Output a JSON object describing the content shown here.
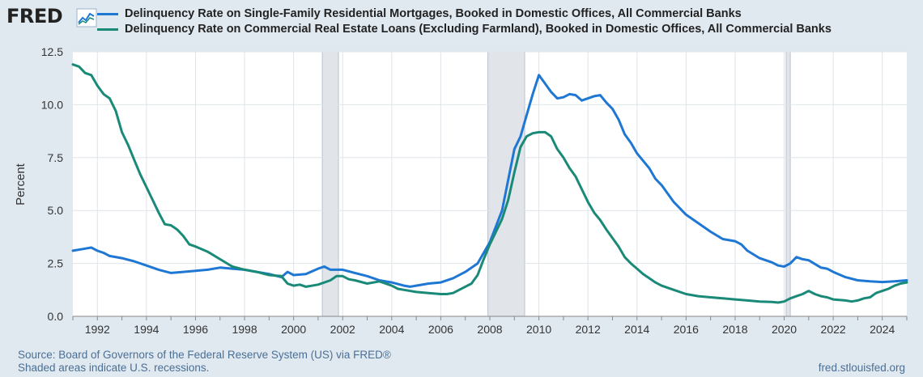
{
  "header": {
    "logo_text": "FRED",
    "logo_icon": "chart-line-icon"
  },
  "footer": {
    "source": "Source: Board of Governors of the Federal Reserve System (US) via FRED®",
    "recession_note": "Shaded areas indicate U.S. recessions.",
    "site": "fred.stlouisfed.org"
  },
  "chart_data": {
    "type": "line",
    "title": "",
    "xlabel": "",
    "ylabel": "Percent",
    "xlim": [
      1991.0,
      2025.0
    ],
    "ylim": [
      0,
      12.5
    ],
    "x_ticks": [
      1992,
      1994,
      1996,
      1998,
      2000,
      2002,
      2004,
      2006,
      2008,
      2010,
      2012,
      2014,
      2016,
      2018,
      2020,
      2022,
      2024
    ],
    "y_ticks": [
      "0.0",
      "2.5",
      "5.0",
      "7.5",
      "10.0",
      "12.5"
    ],
    "grid": true,
    "legend_position": "top-left",
    "recessions": [
      [
        2001.17,
        2001.83
      ],
      [
        2007.92,
        2009.42
      ],
      [
        2020.08,
        2020.25
      ]
    ],
    "series": [
      {
        "name": "Delinquency Rate on Single-Family Residential Mortgages, Booked in Domestic Offices, All Commercial Banks",
        "color": "#1f77d4",
        "points": [
          [
            1991.0,
            3.1
          ],
          [
            1991.5,
            3.2
          ],
          [
            1991.75,
            3.25
          ],
          [
            1992.0,
            3.1
          ],
          [
            1992.25,
            3.0
          ],
          [
            1992.5,
            2.85
          ],
          [
            1993.0,
            2.75
          ],
          [
            1993.5,
            2.6
          ],
          [
            1994.0,
            2.4
          ],
          [
            1994.5,
            2.2
          ],
          [
            1995.0,
            2.05
          ],
          [
            1995.5,
            2.1
          ],
          [
            1996.0,
            2.15
          ],
          [
            1996.5,
            2.2
          ],
          [
            1997.0,
            2.3
          ],
          [
            1997.5,
            2.25
          ],
          [
            1998.0,
            2.2
          ],
          [
            1998.5,
            2.1
          ],
          [
            1999.0,
            2.0
          ],
          [
            1999.5,
            1.85
          ],
          [
            1999.75,
            2.1
          ],
          [
            2000.0,
            1.95
          ],
          [
            2000.5,
            2.0
          ],
          [
            2001.0,
            2.25
          ],
          [
            2001.25,
            2.35
          ],
          [
            2001.5,
            2.2
          ],
          [
            2002.0,
            2.2
          ],
          [
            2002.5,
            2.05
          ],
          [
            2003.0,
            1.9
          ],
          [
            2003.5,
            1.7
          ],
          [
            2004.0,
            1.6
          ],
          [
            2004.5,
            1.45
          ],
          [
            2004.75,
            1.4
          ],
          [
            2005.0,
            1.45
          ],
          [
            2005.5,
            1.55
          ],
          [
            2006.0,
            1.6
          ],
          [
            2006.5,
            1.8
          ],
          [
            2007.0,
            2.1
          ],
          [
            2007.5,
            2.5
          ],
          [
            2008.0,
            3.5
          ],
          [
            2008.5,
            5.0
          ],
          [
            2009.0,
            7.9
          ],
          [
            2009.25,
            8.5
          ],
          [
            2009.5,
            9.5
          ],
          [
            2009.75,
            10.5
          ],
          [
            2010.0,
            11.4
          ],
          [
            2010.25,
            11.0
          ],
          [
            2010.5,
            10.6
          ],
          [
            2010.75,
            10.3
          ],
          [
            2011.0,
            10.35
          ],
          [
            2011.25,
            10.5
          ],
          [
            2011.5,
            10.45
          ],
          [
            2011.75,
            10.2
          ],
          [
            2012.0,
            10.3
          ],
          [
            2012.25,
            10.4
          ],
          [
            2012.5,
            10.45
          ],
          [
            2012.75,
            10.1
          ],
          [
            2013.0,
            9.8
          ],
          [
            2013.25,
            9.3
          ],
          [
            2013.5,
            8.6
          ],
          [
            2013.75,
            8.2
          ],
          [
            2014.0,
            7.7
          ],
          [
            2014.5,
            7.0
          ],
          [
            2014.75,
            6.5
          ],
          [
            2015.0,
            6.2
          ],
          [
            2015.5,
            5.4
          ],
          [
            2016.0,
            4.8
          ],
          [
            2016.5,
            4.4
          ],
          [
            2017.0,
            4.0
          ],
          [
            2017.5,
            3.65
          ],
          [
            2018.0,
            3.55
          ],
          [
            2018.25,
            3.4
          ],
          [
            2018.5,
            3.1
          ],
          [
            2019.0,
            2.75
          ],
          [
            2019.5,
            2.55
          ],
          [
            2019.75,
            2.4
          ],
          [
            2020.0,
            2.35
          ],
          [
            2020.25,
            2.5
          ],
          [
            2020.5,
            2.8
          ],
          [
            2020.75,
            2.7
          ],
          [
            2021.0,
            2.65
          ],
          [
            2021.5,
            2.3
          ],
          [
            2021.75,
            2.25
          ],
          [
            2022.0,
            2.1
          ],
          [
            2022.5,
            1.85
          ],
          [
            2023.0,
            1.7
          ],
          [
            2023.5,
            1.65
          ],
          [
            2024.0,
            1.62
          ],
          [
            2024.5,
            1.65
          ],
          [
            2025.0,
            1.7
          ]
        ]
      },
      {
        "name": "Delinquency Rate on Commercial Real Estate Loans (Excluding Farmland), Booked in Domestic Offices, All Commercial Banks",
        "color": "#1a8a78",
        "points": [
          [
            1991.0,
            11.9
          ],
          [
            1991.25,
            11.8
          ],
          [
            1991.5,
            11.5
          ],
          [
            1991.75,
            11.4
          ],
          [
            1992.0,
            10.9
          ],
          [
            1992.25,
            10.5
          ],
          [
            1992.5,
            10.3
          ],
          [
            1992.75,
            9.7
          ],
          [
            1993.0,
            8.7
          ],
          [
            1993.25,
            8.1
          ],
          [
            1993.5,
            7.4
          ],
          [
            1993.75,
            6.7
          ],
          [
            1994.0,
            6.1
          ],
          [
            1994.25,
            5.5
          ],
          [
            1994.5,
            4.9
          ],
          [
            1994.75,
            4.35
          ],
          [
            1995.0,
            4.3
          ],
          [
            1995.25,
            4.1
          ],
          [
            1995.5,
            3.8
          ],
          [
            1995.75,
            3.4
          ],
          [
            1996.0,
            3.3
          ],
          [
            1996.5,
            3.05
          ],
          [
            1997.0,
            2.7
          ],
          [
            1997.5,
            2.35
          ],
          [
            1998.0,
            2.2
          ],
          [
            1998.5,
            2.1
          ],
          [
            1999.0,
            1.95
          ],
          [
            1999.5,
            1.9
          ],
          [
            1999.75,
            1.55
          ],
          [
            2000.0,
            1.45
          ],
          [
            2000.25,
            1.5
          ],
          [
            2000.5,
            1.4
          ],
          [
            2001.0,
            1.5
          ],
          [
            2001.5,
            1.7
          ],
          [
            2001.75,
            1.9
          ],
          [
            2002.0,
            1.9
          ],
          [
            2002.25,
            1.75
          ],
          [
            2002.5,
            1.7
          ],
          [
            2003.0,
            1.55
          ],
          [
            2003.5,
            1.65
          ],
          [
            2004.0,
            1.45
          ],
          [
            2004.25,
            1.3
          ],
          [
            2004.5,
            1.25
          ],
          [
            2005.0,
            1.15
          ],
          [
            2005.5,
            1.1
          ],
          [
            2006.0,
            1.05
          ],
          [
            2006.25,
            1.05
          ],
          [
            2006.5,
            1.1
          ],
          [
            2006.75,
            1.25
          ],
          [
            2007.0,
            1.4
          ],
          [
            2007.25,
            1.55
          ],
          [
            2007.5,
            1.95
          ],
          [
            2007.75,
            2.7
          ],
          [
            2008.0,
            3.4
          ],
          [
            2008.25,
            4.0
          ],
          [
            2008.5,
            4.6
          ],
          [
            2008.75,
            5.5
          ],
          [
            2009.0,
            6.8
          ],
          [
            2009.25,
            8.0
          ],
          [
            2009.5,
            8.5
          ],
          [
            2009.75,
            8.65
          ],
          [
            2010.0,
            8.7
          ],
          [
            2010.25,
            8.7
          ],
          [
            2010.5,
            8.5
          ],
          [
            2010.75,
            7.9
          ],
          [
            2011.0,
            7.5
          ],
          [
            2011.25,
            7.0
          ],
          [
            2011.5,
            6.6
          ],
          [
            2011.75,
            6.0
          ],
          [
            2012.0,
            5.4
          ],
          [
            2012.25,
            4.9
          ],
          [
            2012.5,
            4.55
          ],
          [
            2012.75,
            4.1
          ],
          [
            2013.0,
            3.7
          ],
          [
            2013.25,
            3.3
          ],
          [
            2013.5,
            2.8
          ],
          [
            2013.75,
            2.5
          ],
          [
            2014.0,
            2.25
          ],
          [
            2014.25,
            2.0
          ],
          [
            2014.5,
            1.8
          ],
          [
            2014.75,
            1.6
          ],
          [
            2015.0,
            1.45
          ],
          [
            2015.5,
            1.25
          ],
          [
            2016.0,
            1.05
          ],
          [
            2016.5,
            0.95
          ],
          [
            2017.0,
            0.9
          ],
          [
            2017.5,
            0.85
          ],
          [
            2018.0,
            0.8
          ],
          [
            2018.5,
            0.75
          ],
          [
            2019.0,
            0.7
          ],
          [
            2019.5,
            0.68
          ],
          [
            2019.75,
            0.65
          ],
          [
            2020.0,
            0.7
          ],
          [
            2020.25,
            0.85
          ],
          [
            2020.5,
            0.95
          ],
          [
            2020.75,
            1.05
          ],
          [
            2021.0,
            1.2
          ],
          [
            2021.25,
            1.05
          ],
          [
            2021.5,
            0.95
          ],
          [
            2021.75,
            0.9
          ],
          [
            2022.0,
            0.8
          ],
          [
            2022.5,
            0.75
          ],
          [
            2022.75,
            0.7
          ],
          [
            2023.0,
            0.75
          ],
          [
            2023.25,
            0.85
          ],
          [
            2023.5,
            0.9
          ],
          [
            2023.75,
            1.1
          ],
          [
            2024.0,
            1.2
          ],
          [
            2024.25,
            1.3
          ],
          [
            2024.5,
            1.45
          ],
          [
            2024.75,
            1.55
          ],
          [
            2025.0,
            1.6
          ]
        ]
      }
    ]
  }
}
